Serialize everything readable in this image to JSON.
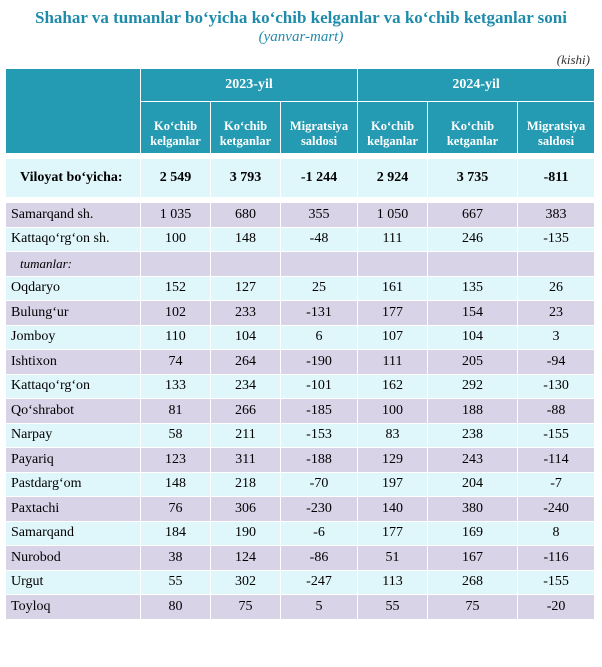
{
  "title": "Shahar va tumanlar bo‘yicha ko‘chib kelganlar va ko‘chib ketganlar soni",
  "subtitle": "(yanvar-mart)",
  "unit": "(kishi)",
  "years": [
    "2023-yil",
    "2024-yil"
  ],
  "subheaders": {
    "in": [
      "Ko‘chib",
      "kelganlar"
    ],
    "out": [
      "Ko‘chib",
      "ketganlar"
    ],
    "saldo": [
      "Migratsiya",
      "saldosi"
    ]
  },
  "colors": {
    "header": "#249bb2",
    "title": "#1f8bab",
    "row_light": "#dff6fb",
    "row_purple": "#d9d3e8"
  },
  "total": {
    "name": "Viloyat bo‘yicha:",
    "values": [
      "2 549",
      "3 793",
      "-1 244",
      "2 924",
      "3 735",
      "-811"
    ]
  },
  "section_label": "tumanlar:",
  "rows": [
    {
      "name": "Samarqand sh.",
      "values": [
        "1 035",
        "680",
        "355",
        "1 050",
        "667",
        "383"
      ]
    },
    {
      "name": "Kattaqo‘rg‘on sh.",
      "values": [
        "100",
        "148",
        "-48",
        "111",
        "246",
        "-135"
      ]
    },
    {
      "name": "Oqdaryo",
      "values": [
        "152",
        "127",
        "25",
        "161",
        "135",
        "26"
      ]
    },
    {
      "name": "Bulung‘ur",
      "values": [
        "102",
        "233",
        "-131",
        "177",
        "154",
        "23"
      ]
    },
    {
      "name": "Jomboy",
      "values": [
        "110",
        "104",
        "6",
        "107",
        "104",
        "3"
      ]
    },
    {
      "name": "Ishtixon",
      "values": [
        "74",
        "264",
        "-190",
        "111",
        "205",
        "-94"
      ]
    },
    {
      "name": "Kattaqo‘rg‘on",
      "values": [
        "133",
        "234",
        "-101",
        "162",
        "292",
        "-130"
      ]
    },
    {
      "name": "Qo‘shrabot",
      "values": [
        "81",
        "266",
        "-185",
        "100",
        "188",
        "-88"
      ]
    },
    {
      "name": "Narpay",
      "values": [
        "58",
        "211",
        "-153",
        "83",
        "238",
        "-155"
      ]
    },
    {
      "name": "Payariq",
      "values": [
        "123",
        "311",
        "-188",
        "129",
        "243",
        "-114"
      ]
    },
    {
      "name": "Pastdarg‘om",
      "values": [
        "148",
        "218",
        "-70",
        "197",
        "204",
        "-7"
      ]
    },
    {
      "name": "Paxtachi",
      "values": [
        "76",
        "306",
        "-230",
        "140",
        "380",
        "-240"
      ]
    },
    {
      "name": "Samarqand",
      "values": [
        "184",
        "190",
        "-6",
        "177",
        "169",
        "8"
      ]
    },
    {
      "name": "Nurobod",
      "values": [
        "38",
        "124",
        "-86",
        "51",
        "167",
        "-116"
      ]
    },
    {
      "name": "Urgut",
      "values": [
        "55",
        "302",
        "-247",
        "113",
        "268",
        "-155"
      ]
    },
    {
      "name": "Toyloq",
      "values": [
        "80",
        "75",
        "5",
        "55",
        "75",
        "-20"
      ]
    }
  ]
}
